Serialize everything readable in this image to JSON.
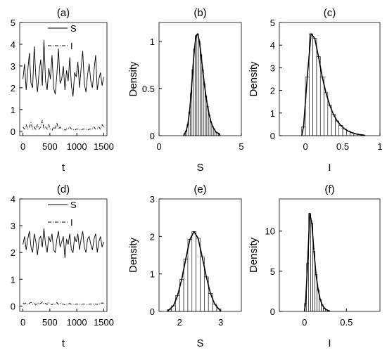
{
  "chart_data": [
    {
      "type": "line",
      "title": "(a)",
      "xlabel": "t",
      "legend": "top",
      "x": [
        0,
        30,
        60,
        90,
        120,
        150,
        180,
        210,
        240,
        270,
        300,
        330,
        360,
        390,
        420,
        450,
        480,
        510,
        540,
        570,
        600,
        630,
        660,
        690,
        720,
        750,
        780,
        810,
        840,
        870,
        900,
        930,
        960,
        990,
        1020,
        1050,
        1080,
        1110,
        1140,
        1170,
        1200,
        1230,
        1260,
        1290,
        1320,
        1350,
        1380,
        1410,
        1440,
        1470,
        1500
      ],
      "series": [
        {
          "name": "S",
          "color": "#000000",
          "line_style": "solid",
          "values": [
            2.4,
            3.1,
            1.9,
            2.8,
            3.6,
            2.2,
            2.0,
            3.9,
            2.5,
            1.8,
            2.7,
            3.3,
            2.1,
            4.2,
            2.3,
            1.9,
            2.9,
            2.4,
            3.5,
            2.0,
            1.7,
            2.6,
            3.8,
            2.2,
            2.4,
            3.0,
            1.9,
            2.8,
            2.3,
            3.4,
            2.1,
            1.6,
            2.7,
            2.5,
            3.2,
            2.0,
            2.9,
            3.7,
            2.2,
            1.8,
            2.6,
            3.1,
            2.3,
            2.0,
            2.8,
            3.5,
            1.9,
            2.4,
            2.7,
            2.1,
            2.5
          ]
        },
        {
          "name": "I",
          "color": "#000000",
          "line_style": "dashdot",
          "values": [
            0.2,
            0.1,
            0.3,
            0.1,
            0.2,
            0.4,
            0.1,
            0.2,
            0.05,
            0.3,
            0.1,
            0.2,
            0.5,
            0.1,
            0.2,
            0.1,
            0.3,
            0.1,
            0.05,
            0.2,
            0.1,
            0.4,
            0.1,
            0.2,
            0.1,
            0.1,
            0.05,
            0.1,
            0.1,
            0.2,
            0.1,
            0.1,
            0.05,
            0.1,
            0.1,
            0.1,
            0.05,
            0.1,
            0.1,
            0.1,
            0.05,
            0.1,
            0.1,
            0.1,
            0.2,
            0.1,
            0.1,
            0.2,
            0.1,
            0.3,
            0.2
          ]
        }
      ],
      "xlim": [
        -60,
        1560
      ],
      "xticks": [
        0,
        500,
        1000,
        1500
      ],
      "ylim": [
        -0.2,
        5
      ],
      "yticks": [
        0,
        1,
        2,
        3,
        4,
        5
      ]
    },
    {
      "type": "histogram",
      "title": "(b)",
      "xlabel": "S",
      "ylabel": "Density",
      "bins": [
        1.5,
        1.6,
        1.7,
        1.8,
        1.9,
        2.0,
        2.1,
        2.2,
        2.3,
        2.4,
        2.5,
        2.6,
        2.7,
        2.8,
        2.9,
        3.0,
        3.1,
        3.2,
        3.3,
        3.4,
        3.5,
        3.6,
        3.7
      ],
      "values": [
        0.02,
        0.05,
        0.12,
        0.25,
        0.45,
        0.7,
        0.92,
        1.06,
        1.08,
        1.0,
        0.86,
        0.7,
        0.55,
        0.42,
        0.31,
        0.22,
        0.15,
        0.1,
        0.07,
        0.04,
        0.03,
        0.02
      ],
      "xlim": [
        0,
        5
      ],
      "xticks": [
        0,
        5
      ],
      "ylim": [
        0,
        1.2
      ],
      "yticks": [
        0,
        0.5,
        1
      ]
    },
    {
      "type": "histogram",
      "title": "(c)",
      "xlabel": "I",
      "ylabel": "Density",
      "bins": [
        -0.05,
        0,
        0.05,
        0.1,
        0.15,
        0.2,
        0.25,
        0.3,
        0.35,
        0.4,
        0.45,
        0.5,
        0.55,
        0.6,
        0.65,
        0.7,
        0.75,
        0.8
      ],
      "values": [
        0.4,
        2.6,
        4.5,
        4.3,
        3.5,
        2.6,
        1.9,
        1.35,
        0.95,
        0.65,
        0.45,
        0.3,
        0.2,
        0.13,
        0.08,
        0.05,
        0.03
      ],
      "xlim": [
        -0.35,
        1
      ],
      "xticks": [
        0,
        0.5,
        1
      ],
      "ylim": [
        0,
        5
      ],
      "yticks": [
        0,
        1,
        2,
        3,
        4,
        5
      ]
    },
    {
      "type": "line",
      "title": "(d)",
      "xlabel": "t",
      "legend": "top",
      "x": [
        0,
        30,
        60,
        90,
        120,
        150,
        180,
        210,
        240,
        270,
        300,
        330,
        360,
        390,
        420,
        450,
        480,
        510,
        540,
        570,
        600,
        630,
        660,
        690,
        720,
        750,
        780,
        810,
        840,
        870,
        900,
        930,
        960,
        990,
        1020,
        1050,
        1080,
        1110,
        1140,
        1170,
        1200,
        1230,
        1260,
        1290,
        1320,
        1350,
        1380,
        1410,
        1440,
        1470,
        1500
      ],
      "series": [
        {
          "name": "S",
          "color": "#000000",
          "line_style": "solid",
          "values": [
            2.3,
            2.6,
            2.1,
            2.5,
            2.8,
            2.2,
            2.0,
            2.7,
            2.4,
            1.9,
            2.5,
            2.6,
            2.2,
            2.9,
            2.3,
            2.0,
            2.6,
            2.4,
            2.7,
            2.1,
            2.0,
            2.5,
            2.8,
            2.2,
            2.4,
            2.6,
            1.8,
            2.5,
            2.3,
            2.7,
            2.1,
            2.0,
            2.6,
            2.4,
            2.7,
            2.1,
            2.5,
            2.8,
            2.2,
            2.0,
            2.5,
            2.6,
            2.3,
            2.1,
            2.5,
            2.7,
            2.0,
            2.4,
            2.6,
            2.2,
            2.4
          ]
        },
        {
          "name": "I",
          "color": "#000000",
          "line_style": "dashdot",
          "values": [
            0.1,
            0.08,
            0.12,
            0.06,
            0.1,
            0.14,
            0.07,
            0.1,
            0.05,
            0.12,
            0.08,
            0.1,
            0.15,
            0.07,
            0.1,
            0.06,
            0.12,
            0.08,
            0.05,
            0.1,
            0.07,
            0.13,
            0.06,
            0.1,
            0.08,
            0.07,
            0.05,
            0.08,
            0.07,
            0.1,
            0.06,
            0.07,
            0.05,
            0.08,
            0.07,
            0.08,
            0.05,
            0.07,
            0.08,
            0.06,
            0.05,
            0.07,
            0.08,
            0.06,
            0.1,
            0.07,
            0.06,
            0.1,
            0.07,
            0.12,
            0.1
          ]
        }
      ],
      "xlim": [
        -60,
        1560
      ],
      "xticks": [
        0,
        500,
        1000,
        1500
      ],
      "ylim": [
        -0.2,
        4
      ],
      "yticks": [
        0,
        1,
        2,
        3,
        4
      ]
    },
    {
      "type": "histogram",
      "title": "(e)",
      "xlabel": "S",
      "ylabel": "Density",
      "bins": [
        1.7,
        1.8,
        1.9,
        2.0,
        2.1,
        2.2,
        2.3,
        2.4,
        2.5,
        2.6,
        2.7,
        2.8,
        2.9,
        3.0
      ],
      "values": [
        0.05,
        0.15,
        0.42,
        0.85,
        1.4,
        1.92,
        2.13,
        1.95,
        1.45,
        0.92,
        0.48,
        0.2,
        0.07
      ],
      "xlim": [
        1.5,
        3.5
      ],
      "xticks": [
        2,
        3
      ],
      "ylim": [
        0,
        3
      ],
      "yticks": [
        0,
        1,
        2,
        3
      ]
    },
    {
      "type": "histogram",
      "title": "(f)",
      "xlabel": "I",
      "ylabel": "Density",
      "bins": [
        0,
        0.025,
        0.05,
        0.075,
        0.1,
        0.125,
        0.15,
        0.175,
        0.2,
        0.225,
        0.25,
        0.275,
        0.3
      ],
      "values": [
        1.0,
        6.0,
        12.2,
        11.0,
        7.5,
        4.6,
        2.7,
        1.5,
        0.8,
        0.4,
        0.2,
        0.1
      ],
      "xlim": [
        -0.3,
        0.9
      ],
      "xticks": [
        0,
        0.5
      ],
      "ylim": [
        0,
        14
      ],
      "yticks": [
        0,
        5,
        10
      ]
    }
  ]
}
